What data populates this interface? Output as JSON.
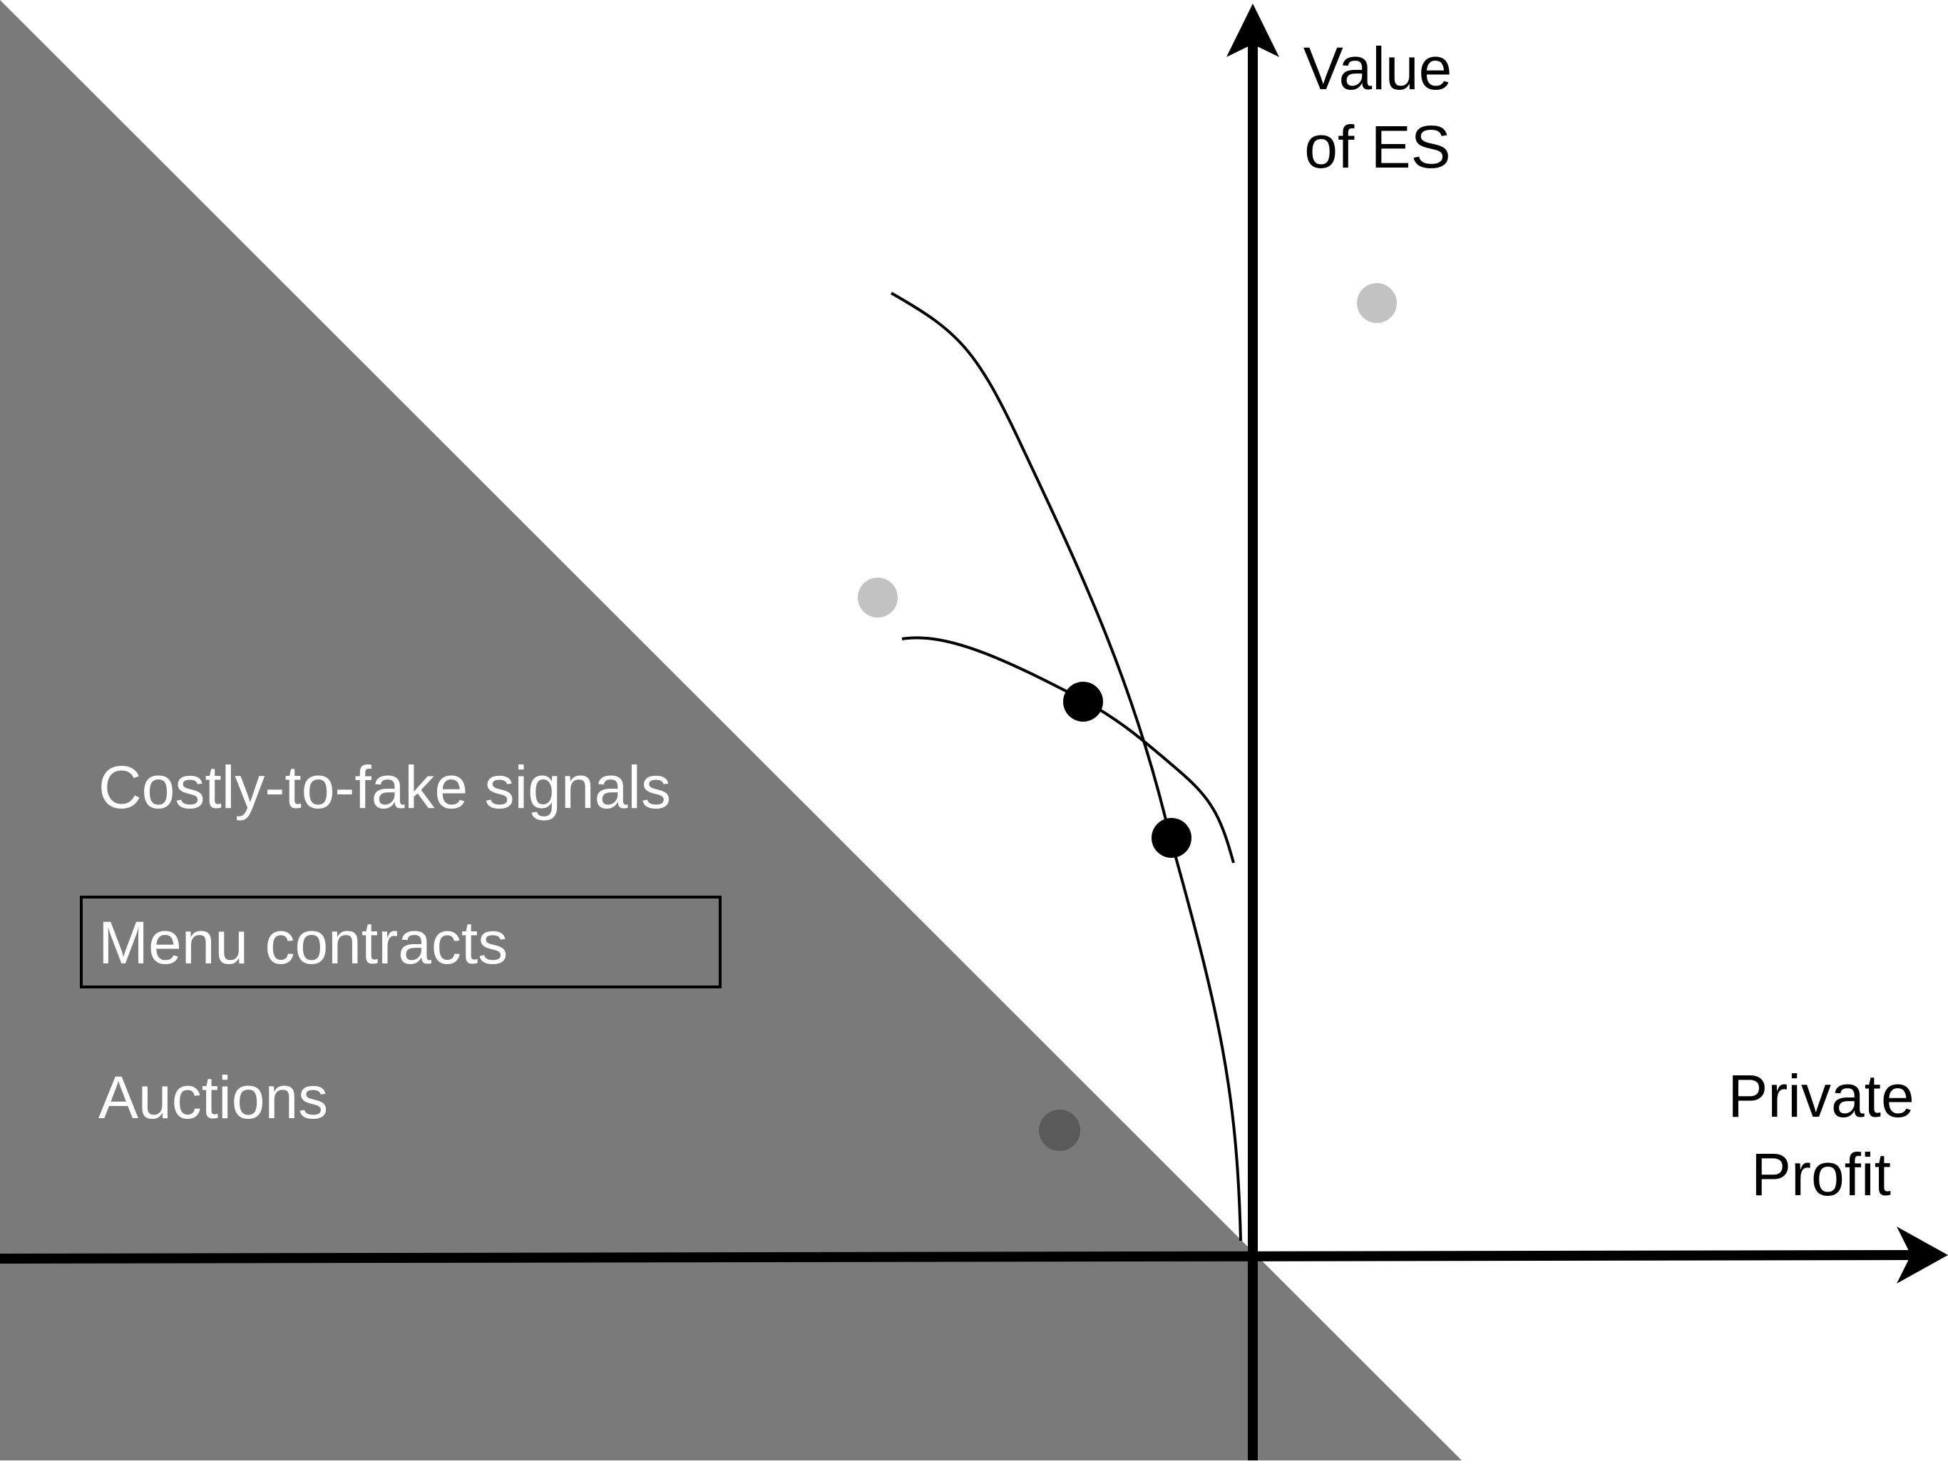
{
  "diagram": {
    "axes": {
      "y_label_line1": "Value",
      "y_label_line2": "of ES",
      "x_label_line1": "Private",
      "x_label_line2": "Profit"
    },
    "shaded_region_labels": [
      "Costly-to-fake signals",
      "Menu contracts",
      "Auctions"
    ],
    "highlighted_label": "Menu contracts",
    "colors": {
      "background": "#ffffff",
      "shaded_region": "#7a7a7a",
      "axis": "#000000",
      "curve": "#000000",
      "light_point": "#c2c2c2",
      "dark_point": "#5a5a5a",
      "key_point": "#000000",
      "region_text": "#ffffff",
      "axis_text": "#000000"
    },
    "markers": {
      "light_points": 2,
      "dark_points": 1,
      "key_points": 2,
      "curves": 2
    }
  }
}
